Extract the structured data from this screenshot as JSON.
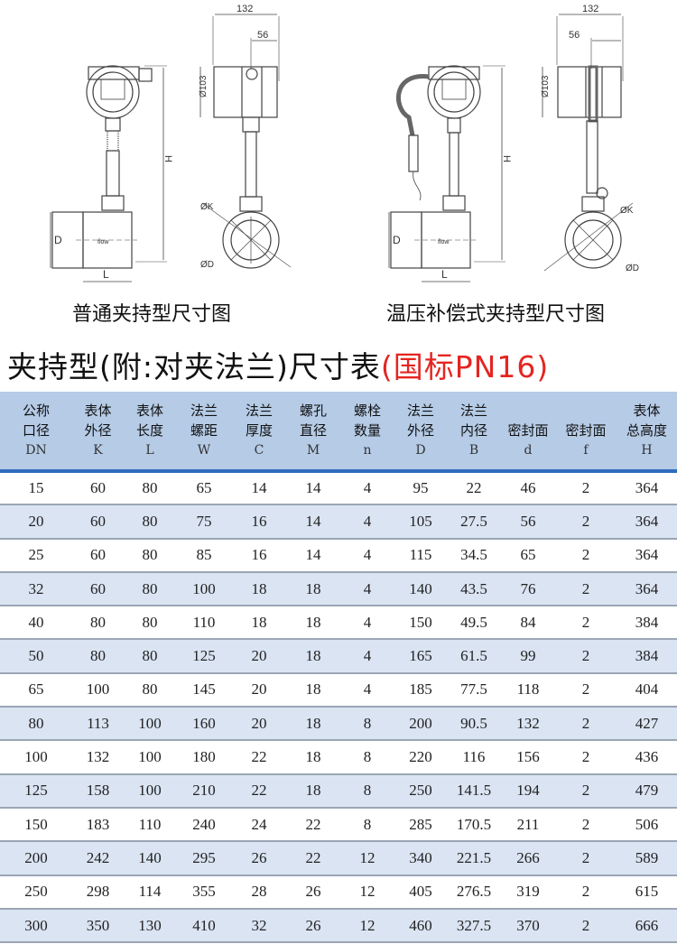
{
  "drawings": {
    "left": {
      "caption": "普通夹持型尺寸图",
      "dim_width": "132",
      "dim_offset": "56",
      "dim_housing": "Ø103",
      "dim_height": "H",
      "dim_d": "D",
      "dim_l": "L",
      "dim_k": "ØK",
      "dim_flange": "ØD",
      "flow": "flow"
    },
    "right": {
      "caption": "温压补偿式夹持型尺寸图",
      "dim_width": "132",
      "dim_offset": "56",
      "dim_housing": "Ø103",
      "dim_height": "H",
      "dim_d": "D",
      "dim_l": "L",
      "dim_k": "ØK",
      "dim_flange": "ØD",
      "flow": "flow"
    }
  },
  "title": {
    "main": "夹持型(附:对夹法兰)尺寸表",
    "standard": "(国标PN16)",
    "accent_color": "#e52521"
  },
  "table": {
    "header_color": "#b5cbe6",
    "stripe_color": "#dae4f3",
    "columns": [
      {
        "line1": "公称",
        "line2": "口径",
        "code": "DN"
      },
      {
        "line1": "表体",
        "line2": "外径",
        "code": "K"
      },
      {
        "line1": "表体",
        "line2": "长度",
        "code": "L"
      },
      {
        "line1": "法兰",
        "line2": "螺距",
        "code": "W"
      },
      {
        "line1": "法兰",
        "line2": "厚度",
        "code": "C"
      },
      {
        "line1": "螺孔",
        "line2": "直径",
        "code": "M"
      },
      {
        "line1": "螺栓",
        "line2": "数量",
        "code": "n"
      },
      {
        "line1": "法兰",
        "line2": "外径",
        "code": "D"
      },
      {
        "line1": "法兰",
        "line2": "内径",
        "code": "B"
      },
      {
        "line1": "",
        "line2": "密封面",
        "code": "d"
      },
      {
        "line1": "",
        "line2": "密封面",
        "code": "f"
      },
      {
        "line1": "表体",
        "line2": "总高度",
        "code": "H"
      }
    ],
    "rows": [
      [
        "15",
        "60",
        "80",
        "65",
        "14",
        "14",
        "4",
        "95",
        "22",
        "46",
        "2",
        "364"
      ],
      [
        "20",
        "60",
        "80",
        "75",
        "16",
        "14",
        "4",
        "105",
        "27.5",
        "56",
        "2",
        "364"
      ],
      [
        "25",
        "60",
        "80",
        "85",
        "16",
        "14",
        "4",
        "115",
        "34.5",
        "65",
        "2",
        "364"
      ],
      [
        "32",
        "60",
        "80",
        "100",
        "18",
        "18",
        "4",
        "140",
        "43.5",
        "76",
        "2",
        "364"
      ],
      [
        "40",
        "80",
        "80",
        "110",
        "18",
        "18",
        "4",
        "150",
        "49.5",
        "84",
        "2",
        "384"
      ],
      [
        "50",
        "80",
        "80",
        "125",
        "20",
        "18",
        "4",
        "165",
        "61.5",
        "99",
        "2",
        "384"
      ],
      [
        "65",
        "100",
        "80",
        "145",
        "20",
        "18",
        "4",
        "185",
        "77.5",
        "118",
        "2",
        "404"
      ],
      [
        "80",
        "113",
        "100",
        "160",
        "20",
        "18",
        "8",
        "200",
        "90.5",
        "132",
        "2",
        "427"
      ],
      [
        "100",
        "132",
        "100",
        "180",
        "22",
        "18",
        "8",
        "220",
        "116",
        "156",
        "2",
        "436"
      ],
      [
        "125",
        "158",
        "100",
        "210",
        "22",
        "18",
        "8",
        "250",
        "141.5",
        "194",
        "2",
        "479"
      ],
      [
        "150",
        "183",
        "110",
        "240",
        "24",
        "22",
        "8",
        "285",
        "170.5",
        "211",
        "2",
        "506"
      ],
      [
        "200",
        "242",
        "140",
        "295",
        "26",
        "22",
        "12",
        "340",
        "221.5",
        "266",
        "2",
        "589"
      ],
      [
        "250",
        "298",
        "114",
        "355",
        "28",
        "26",
        "12",
        "405",
        "276.5",
        "319",
        "2",
        "615"
      ],
      [
        "300",
        "350",
        "130",
        "410",
        "32",
        "26",
        "12",
        "460",
        "327.5",
        "370",
        "2",
        "666"
      ]
    ]
  }
}
